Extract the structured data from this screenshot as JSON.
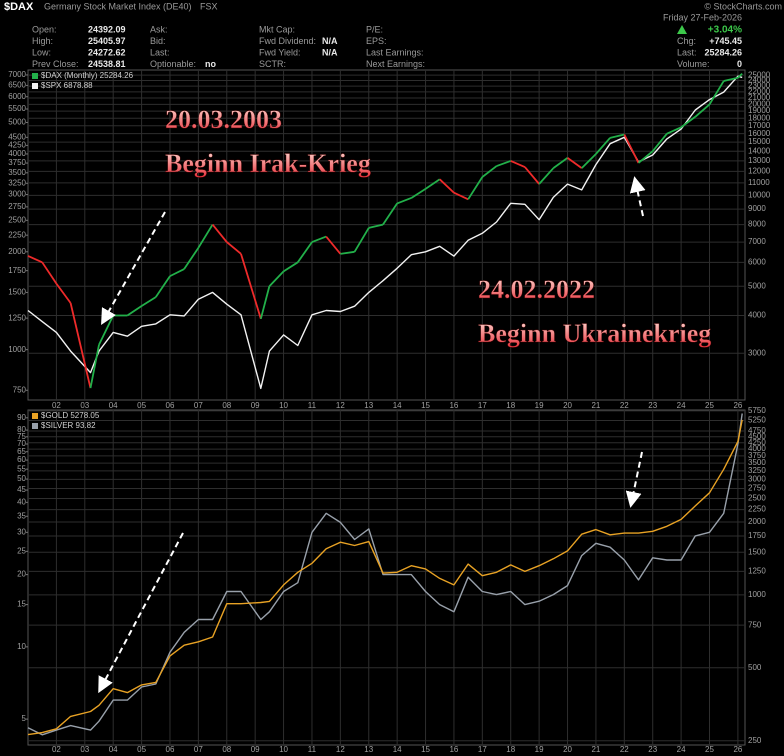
{
  "header": {
    "symbol": "$DAX",
    "name": "Germany Stock Market Index (DE40)",
    "exchange": "FSX",
    "watermark": "© StockCharts.com",
    "date": "Friday  27-Feb-2026",
    "change_pct": "+3.04%",
    "columns": [
      [
        {
          "label": "Open:",
          "value": "24392.09"
        },
        {
          "label": "High:",
          "value": "25405.97"
        },
        {
          "label": "Low:",
          "value": "24272.62"
        },
        {
          "label": "Prev Close:",
          "value": "24538.81"
        }
      ],
      [
        {
          "label": "Ask:"
        },
        {
          "label": "Bid:"
        },
        {
          "label": "Last:"
        },
        {
          "label": "Optionable:",
          "value": "no"
        }
      ],
      [
        {
          "label": "Mkt Cap:"
        },
        {
          "label": "Fwd Dividend:",
          "value": "N/A"
        },
        {
          "label": "Fwd Yield:",
          "value": "N/A"
        },
        {
          "label": "SCTR:"
        }
      ],
      [
        {
          "label": "P/E:"
        },
        {
          "label": "EPS:"
        },
        {
          "label": "Last Earnings:"
        },
        {
          "label": "Next Earnings:"
        }
      ]
    ],
    "right_fields": [
      {
        "label": "Chg:",
        "value": "+745.45"
      },
      {
        "label": "Last:",
        "value": "25284.26"
      },
      {
        "label": "Volume:",
        "value": "0"
      }
    ]
  },
  "chart_data": [
    {
      "type": "line",
      "log_scale": true,
      "grid": true,
      "legend": "top-left",
      "annotations": [
        "20.03.2003",
        "Beginn Irak-Krieg",
        "24.02.2022",
        "Beginn Ukrainekrieg"
      ],
      "x": [
        2001,
        2001.5,
        2002,
        2002.5,
        2003.2,
        2003.5,
        2004,
        2004.5,
        2005,
        2005.5,
        2006,
        2006.5,
        2007,
        2007.5,
        2008,
        2008.5,
        2009.2,
        2009.5,
        2010,
        2010.5,
        2011,
        2011.5,
        2012,
        2012.5,
        2013,
        2013.5,
        2014,
        2014.5,
        2015,
        2015.5,
        2016,
        2016.5,
        2017,
        2017.5,
        2018,
        2018.5,
        2019,
        2019.5,
        2020,
        2020.5,
        2021,
        2021.5,
        2022,
        2022.5,
        2023,
        2023.5,
        2024,
        2024.5,
        2025,
        2025.5,
        2026,
        2026.15
      ],
      "xlim": [
        2001,
        2026.25
      ],
      "xticks": [
        {
          "value": 2002,
          "label": "02"
        },
        {
          "value": 2003,
          "label": "03"
        },
        {
          "value": 2004,
          "label": "04"
        },
        {
          "value": 2005,
          "label": "05"
        },
        {
          "value": 2006,
          "label": "06"
        },
        {
          "value": 2007,
          "label": "07"
        },
        {
          "value": 2008,
          "label": "08"
        },
        {
          "value": 2009,
          "label": "09"
        },
        {
          "value": 2010,
          "label": "10"
        },
        {
          "value": 2011,
          "label": "11"
        },
        {
          "value": 2012,
          "label": "12"
        },
        {
          "value": 2013,
          "label": "13"
        },
        {
          "value": 2014,
          "label": "14"
        },
        {
          "value": 2015,
          "label": "15"
        },
        {
          "value": 2016,
          "label": "16"
        },
        {
          "value": 2017,
          "label": "17"
        },
        {
          "value": 2018,
          "label": "18"
        },
        {
          "value": 2019,
          "label": "19"
        },
        {
          "value": 2020,
          "label": "20"
        },
        {
          "value": 2021,
          "label": "21"
        },
        {
          "value": 2022,
          "label": "22"
        },
        {
          "value": 2023,
          "label": "23"
        },
        {
          "value": 2024,
          "label": "24"
        },
        {
          "value": 2025,
          "label": "25"
        },
        {
          "value": 2026,
          "label": "26"
        }
      ],
      "ylim": [
        700,
        7250
      ],
      "yticks": [
        750,
        1000,
        1250,
        1500,
        1750,
        2000,
        2250,
        2500,
        2750,
        3000,
        3250,
        3500,
        3750,
        4000,
        4250,
        4500,
        5000,
        5500,
        6000,
        6500,
        7000
      ],
      "y2lim": [
        2100,
        26000
      ],
      "y2ticks": [
        3000,
        4000,
        5000,
        6000,
        7000,
        8000,
        9000,
        10000,
        11000,
        12000,
        13000,
        14000,
        15000,
        16000,
        17000,
        18000,
        19000,
        20000,
        21000,
        22000,
        23000,
        24000,
        25000
      ],
      "series": [
        {
          "name": "$DAX (Monthly) 25284.26",
          "axis": "y2",
          "color": "#22b04a",
          "down_color": "#ee2a2a",
          "values": [
            6300,
            6000,
            5100,
            4400,
            2300,
            3200,
            4000,
            4000,
            4300,
            4600,
            5400,
            5700,
            6700,
            8000,
            7000,
            6400,
            3900,
            5000,
            5600,
            6000,
            7000,
            7300,
            6400,
            6500,
            7800,
            8000,
            9400,
            9800,
            10500,
            11300,
            10200,
            9700,
            11500,
            12500,
            13000,
            12400,
            10900,
            12300,
            13300,
            12300,
            13700,
            15500,
            15900,
            12800,
            14000,
            16000,
            16800,
            18200,
            20000,
            23900,
            24500,
            25284.26
          ]
        },
        {
          "name": "$SPX 6878.88",
          "color": "#f2f2f2",
          "values": [
            1320,
            1220,
            1130,
            990,
            850,
            990,
            1130,
            1100,
            1180,
            1200,
            1280,
            1270,
            1430,
            1500,
            1380,
            1280,
            760,
            990,
            1110,
            1030,
            1280,
            1320,
            1310,
            1360,
            1500,
            1630,
            1780,
            1960,
            2000,
            2080,
            1940,
            2170,
            2280,
            2470,
            2820,
            2800,
            2510,
            2940,
            3230,
            3100,
            3710,
            4300,
            4500,
            3780,
            3970,
            4450,
            4770,
            5460,
            5880,
            6200,
            6940,
            6878.88
          ]
        }
      ]
    },
    {
      "type": "line",
      "log_scale": true,
      "grid": true,
      "legend": "top-left",
      "x": [
        2001,
        2001.5,
        2002,
        2002.5,
        2003.2,
        2003.5,
        2004,
        2004.5,
        2005,
        2005.5,
        2006,
        2006.5,
        2007,
        2007.5,
        2008,
        2008.5,
        2009.2,
        2009.5,
        2010,
        2010.5,
        2011,
        2011.5,
        2012,
        2012.5,
        2013,
        2013.5,
        2014,
        2014.5,
        2015,
        2015.5,
        2016,
        2016.5,
        2017,
        2017.5,
        2018,
        2018.5,
        2019,
        2019.5,
        2020,
        2020.5,
        2021,
        2021.5,
        2022,
        2022.5,
        2023,
        2023.5,
        2024,
        2024.5,
        2025,
        2025.5,
        2026,
        2026.15
      ],
      "xlim": [
        2001,
        2026.25
      ],
      "xticks": [
        {
          "value": 2002,
          "label": "02"
        },
        {
          "value": 2003,
          "label": "03"
        },
        {
          "value": 2004,
          "label": "04"
        },
        {
          "value": 2005,
          "label": "05"
        },
        {
          "value": 2006,
          "label": "06"
        },
        {
          "value": 2007,
          "label": "07"
        },
        {
          "value": 2008,
          "label": "08"
        },
        {
          "value": 2009,
          "label": "09"
        },
        {
          "value": 2010,
          "label": "10"
        },
        {
          "value": 2011,
          "label": "11"
        },
        {
          "value": 2012,
          "label": "12"
        },
        {
          "value": 2013,
          "label": "13"
        },
        {
          "value": 2014,
          "label": "14"
        },
        {
          "value": 2015,
          "label": "15"
        },
        {
          "value": 2016,
          "label": "16"
        },
        {
          "value": 2017,
          "label": "17"
        },
        {
          "value": 2018,
          "label": "18"
        },
        {
          "value": 2019,
          "label": "19"
        },
        {
          "value": 2020,
          "label": "20"
        },
        {
          "value": 2021,
          "label": "21"
        },
        {
          "value": 2022,
          "label": "22"
        },
        {
          "value": 2023,
          "label": "23"
        },
        {
          "value": 2024,
          "label": "24"
        },
        {
          "value": 2025,
          "label": "25"
        },
        {
          "value": 2026,
          "label": "26"
        }
      ],
      "ylim": [
        3.9,
        97
      ],
      "yticks": [
        5,
        10,
        15,
        20,
        25,
        30,
        35,
        40,
        45,
        50,
        55,
        60,
        65,
        70,
        75,
        80,
        90
      ],
      "y2lim": [
        240,
        5800
      ],
      "y2ticks": [
        250,
        500,
        750,
        1000,
        1250,
        1500,
        1750,
        2000,
        2250,
        2500,
        2750,
        3000,
        3250,
        3500,
        3750,
        4000,
        4250,
        4500,
        4750,
        5250,
        5750
      ],
      "series": [
        {
          "name": "$GOLD 5278.05",
          "axis": "y2",
          "color": "#e8a224",
          "values": [
            265,
            270,
            280,
            315,
            330,
            350,
            410,
            395,
            425,
            435,
            560,
            620,
            640,
            670,
            920,
            920,
            930,
            940,
            1100,
            1240,
            1350,
            1550,
            1650,
            1600,
            1660,
            1230,
            1240,
            1320,
            1280,
            1170,
            1100,
            1340,
            1200,
            1240,
            1330,
            1250,
            1320,
            1410,
            1520,
            1780,
            1860,
            1770,
            1800,
            1800,
            1830,
            1920,
            2050,
            2330,
            2640,
            3300,
            4300,
            5278.05
          ]
        },
        {
          "name": "$SILVER 93.82",
          "color": "#98a0aa",
          "values": [
            4.6,
            4.3,
            4.5,
            4.7,
            4.5,
            4.9,
            6.0,
            6.0,
            6.8,
            7.0,
            9.5,
            11.5,
            13,
            13,
            17,
            17,
            13,
            14,
            17,
            18.5,
            30,
            36,
            33,
            28,
            31,
            20,
            20,
            20,
            17,
            15,
            14,
            19.5,
            17,
            16.5,
            17,
            15,
            15.5,
            16.5,
            18,
            24,
            27,
            26,
            23,
            19,
            23.5,
            23,
            23,
            29,
            30,
            36,
            70,
            93.82
          ]
        }
      ]
    }
  ]
}
